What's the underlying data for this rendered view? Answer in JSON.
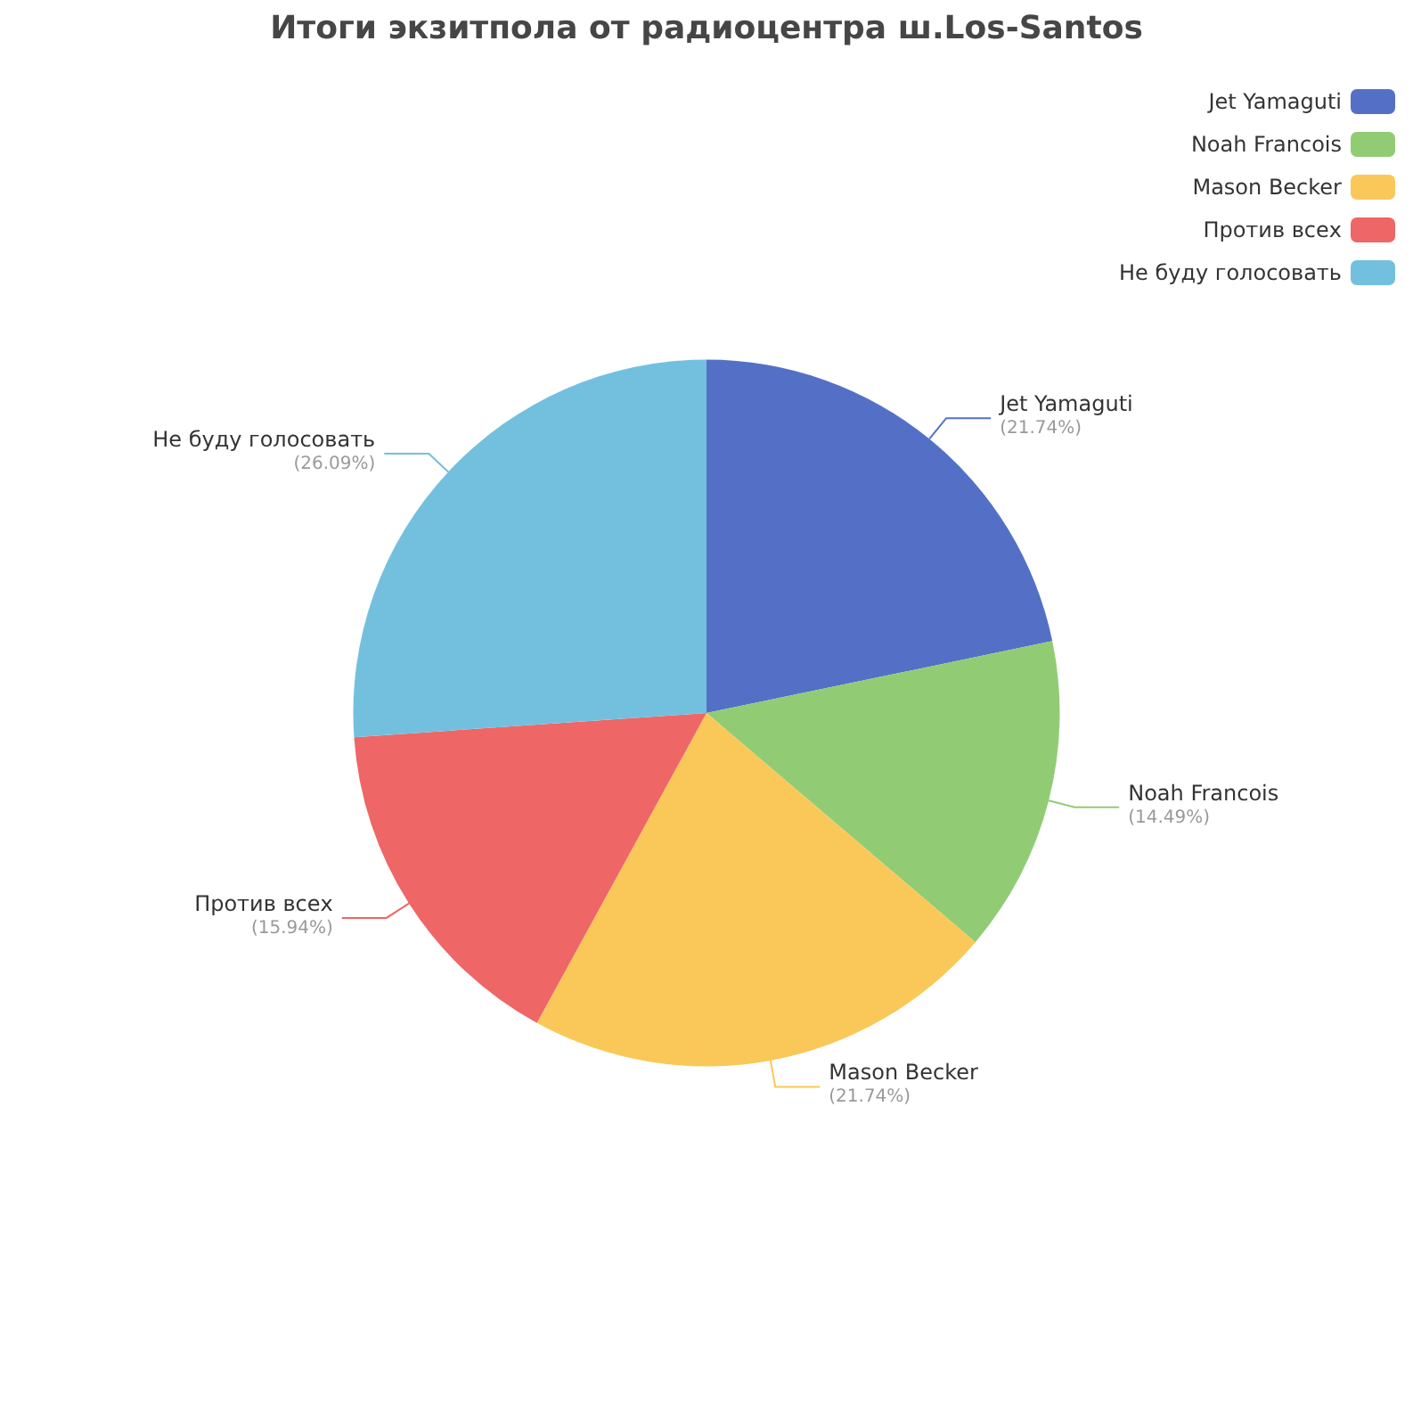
{
  "chart_data": {
    "type": "pie",
    "title": "Итоги экзитпола от радиоцентра ш.Los-Santos",
    "categories": [
      "Jet Yamaguti",
      "Noah Francois",
      "Mason Becker",
      "Против всех",
      "Не буду голосовать"
    ],
    "values": [
      21.74,
      14.49,
      21.74,
      15.94,
      26.09
    ],
    "colors": [
      "#5470c6",
      "#91cc75",
      "#fac858",
      "#ee6666",
      "#73c0de"
    ],
    "value_labels": [
      "(21.74%)",
      "(14.49%)",
      "(21.74%)",
      "(15.94%)",
      "(26.09%)"
    ],
    "legend": "top right"
  }
}
